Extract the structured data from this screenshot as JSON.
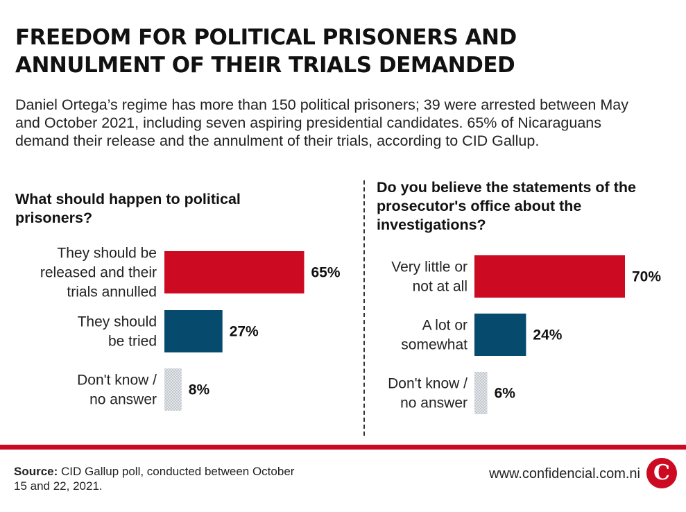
{
  "title": "FREEDOM FOR POLITICAL PRISONERS AND\nANNULMENT OF THEIR TRIALS DEMANDED",
  "subtitle": "Daniel Ortega’s regime has more than 150 political prisoners; 39 were arrested between May and October 2021, including seven aspiring presidential candidates. 65% of Nicaraguans demand their release and the annulment of their trials, according to CID Gallup.",
  "colors": {
    "red": "#cc0a21",
    "blue": "#064b6e",
    "dotted_gray": "#c9ced3"
  },
  "chart_data": [
    {
      "type": "bar",
      "orientation": "horizontal",
      "title": "What should happen to political prisoners?",
      "categories": [
        "They should be released and their trials annulled",
        "They should be tried",
        "Don't know / no answer"
      ],
      "category_lines": [
        [
          "They should be",
          "released and their",
          "trials annulled"
        ],
        [
          "They should",
          "be tried"
        ],
        [
          "Don't know /",
          "no answer"
        ]
      ],
      "values": [
        65,
        27,
        8
      ],
      "value_labels": [
        "65%",
        "27%",
        "8%"
      ],
      "bar_colors": [
        "#cc0a21",
        "#064b6e",
        "#c9ced3"
      ],
      "xlim": [
        0,
        100
      ]
    },
    {
      "type": "bar",
      "orientation": "horizontal",
      "title": "Do you believe the statements of the prosecutor's office about the investigations?",
      "categories": [
        "Very little or not at all",
        "A lot or somewhat",
        "Don't know / no answer"
      ],
      "category_lines": [
        [
          "Very little or",
          "not at all"
        ],
        [
          "A lot or",
          "somewhat"
        ],
        [
          "Don't know /",
          "no answer"
        ]
      ],
      "values": [
        70,
        24,
        6
      ],
      "value_labels": [
        "70%",
        "24%",
        "6%"
      ],
      "bar_colors": [
        "#cc0a21",
        "#064b6e",
        "#c9ced3"
      ],
      "xlim": [
        0,
        100
      ]
    }
  ],
  "footer": {
    "source_label": "Source:",
    "source_text": " CID Gallup poll, conducted between October 15 and 22, 2021.",
    "website": "www.confidencial.com.ni",
    "logo_letter": "C"
  }
}
